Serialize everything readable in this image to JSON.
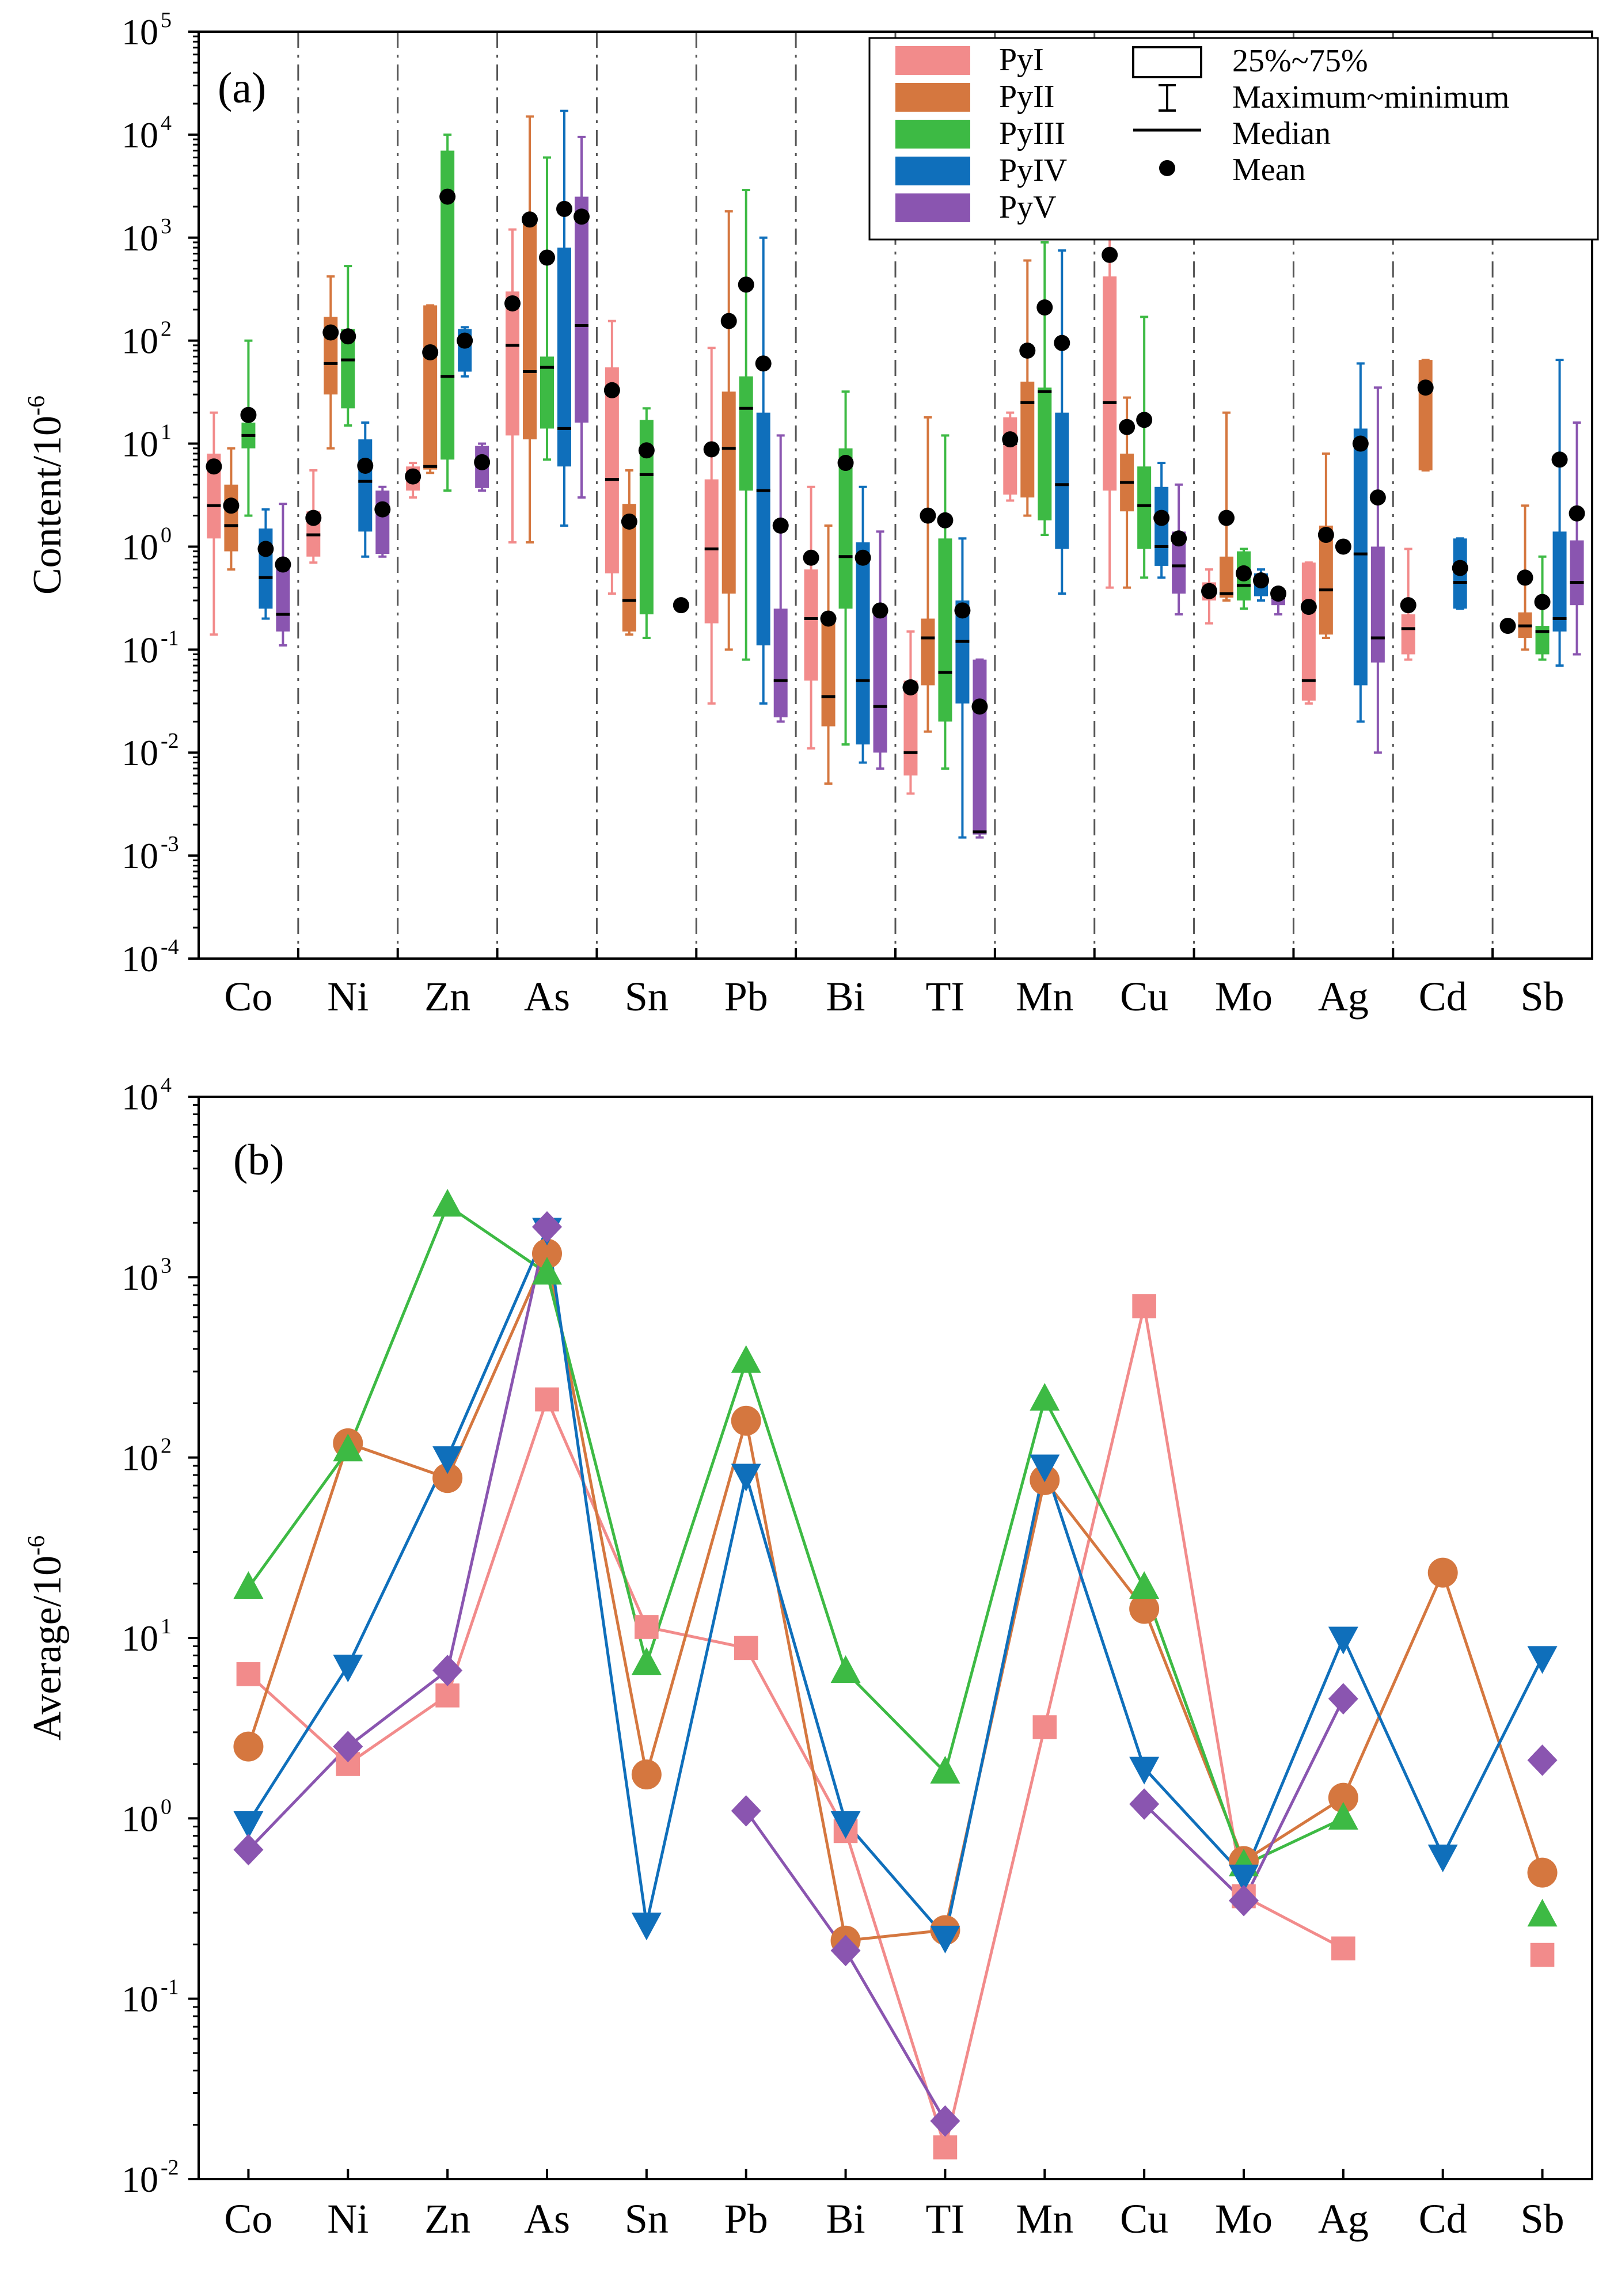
{
  "figure": {
    "elements": [
      "Co",
      "Ni",
      "Zn",
      "As",
      "Sn",
      "Pb",
      "Bi",
      "TI",
      "Mn",
      "Cu",
      "Mo",
      "Ag",
      "Cd",
      "Sb"
    ],
    "colors": {
      "PyI": "#f28b8b",
      "PyII": "#d5773f",
      "PyIII": "#3dba44",
      "PyIV": "#0f6fbb",
      "PyV": "#8a55b0"
    }
  },
  "chart_data": [
    {
      "type": "box",
      "panel": "(a)",
      "ylabel": "Content/10",
      "ylabel_exp": "-6",
      "yscale": "log",
      "ylim_exponents": [
        -4,
        5
      ],
      "ytick_exponents": [
        -4,
        -3,
        -2,
        -1,
        0,
        1,
        2,
        3,
        4,
        5
      ],
      "series_names": [
        "PyI",
        "PyII",
        "PyIII",
        "PyIV",
        "PyV"
      ],
      "legend": {
        "series": [
          "PyI",
          "PyII",
          "PyIII",
          "PyIV",
          "PyV"
        ],
        "symbols": [
          "25%~75%",
          "Maximum~minimum",
          "Median",
          "Mean"
        ]
      },
      "data": {
        "Co": [
          {
            "min": 0.14,
            "q1": 1.2,
            "med": 2.5,
            "q3": 8,
            "max": 20,
            "mean": 6
          },
          {
            "min": 0.6,
            "q1": 0.9,
            "med": 1.6,
            "q3": 4,
            "max": 9,
            "mean": 2.5
          },
          {
            "min": 2,
            "q1": 9,
            "med": 12,
            "q3": 16,
            "max": 100,
            "mean": 19
          },
          {
            "min": 0.2,
            "q1": 0.25,
            "med": 0.5,
            "q3": 1.5,
            "max": 2.3,
            "mean": 0.95
          },
          {
            "min": 0.11,
            "q1": 0.15,
            "med": 0.22,
            "q3": 0.6,
            "max": 2.6,
            "mean": 0.67
          }
        ],
        "Ni": [
          {
            "min": 0.7,
            "q1": 0.8,
            "med": 1.3,
            "q3": 2.2,
            "max": 5.5,
            "mean": 1.9
          },
          {
            "min": 9,
            "q1": 30,
            "med": 60,
            "q3": 170,
            "max": 420,
            "mean": 120
          },
          {
            "min": 15,
            "q1": 22,
            "med": 65,
            "q3": 130,
            "max": 530,
            "mean": 110
          },
          {
            "min": 0.8,
            "q1": 1.4,
            "med": 4.3,
            "q3": 11,
            "max": 16,
            "mean": 6.1
          },
          {
            "min": 0.8,
            "q1": 0.85,
            "med": 2.3,
            "q3": 3.5,
            "max": 3.8,
            "mean": 2.3
          }
        ],
        "Zn": [
          {
            "min": 3,
            "q1": 3.5,
            "med": 4.8,
            "q3": 6,
            "max": 6.5,
            "mean": 4.8
          },
          {
            "min": 5.2,
            "q1": 5.6,
            "med": 6,
            "q3": 220,
            "max": 220,
            "mean": 77
          },
          {
            "min": 3.5,
            "q1": 7,
            "med": 45,
            "q3": 7000,
            "max": 10000,
            "mean": 2500
          },
          {
            "min": 45,
            "q1": 50,
            "med": 100,
            "q3": 130,
            "max": 135,
            "mean": 100
          },
          {
            "min": 3.5,
            "q1": 3.7,
            "med": 6.5,
            "q3": 9.5,
            "max": 10,
            "mean": 6.6
          }
        ],
        "As": [
          {
            "min": 1.1,
            "q1": 12,
            "med": 90,
            "q3": 300,
            "max": 1200,
            "mean": 230
          },
          {
            "min": 1.1,
            "q1": 11,
            "med": 50,
            "q3": 1500,
            "max": 15000,
            "mean": 1500
          },
          {
            "min": 7,
            "q1": 14,
            "med": 55,
            "q3": 70,
            "max": 6000,
            "mean": 640
          },
          {
            "min": 1.6,
            "q1": 6,
            "med": 14,
            "q3": 800,
            "max": 17000,
            "mean": 1900
          },
          {
            "min": 3,
            "q1": 16,
            "med": 140,
            "q3": 2500,
            "max": 9500,
            "mean": 1600
          }
        ],
        "Sn": [
          {
            "min": 0.35,
            "q1": 0.55,
            "med": 4.5,
            "q3": 55,
            "max": 155,
            "mean": 33
          },
          {
            "min": 0.14,
            "q1": 0.15,
            "med": 0.3,
            "q3": 2.6,
            "max": 5.5,
            "mean": 1.75
          },
          {
            "min": 0.13,
            "q1": 0.22,
            "med": 5,
            "q3": 17,
            "max": 22,
            "mean": 8.6
          },
          null,
          {
            "min": 0.27,
            "q1": 0.27,
            "med": 0.27,
            "q3": 0.27,
            "max": 0.27,
            "mean": 0.27,
            "only_mean": true
          }
        ],
        "Pb": [
          {
            "min": 0.03,
            "q1": 0.18,
            "med": 0.95,
            "q3": 4.5,
            "max": 85,
            "mean": 8.8
          },
          {
            "min": 0.1,
            "q1": 0.35,
            "med": 9,
            "q3": 32,
            "max": 1800,
            "mean": 155
          },
          {
            "min": 0.08,
            "q1": 3.5,
            "med": 22,
            "q3": 45,
            "max": 2900,
            "mean": 350
          },
          {
            "min": 0.03,
            "q1": 0.11,
            "med": 3.5,
            "q3": 20,
            "max": 1000,
            "mean": 60
          },
          {
            "min": 0.02,
            "q1": 0.022,
            "med": 0.05,
            "q3": 0.25,
            "max": 12,
            "mean": 1.6
          }
        ],
        "Bi": [
          {
            "min": 0.011,
            "q1": 0.05,
            "med": 0.2,
            "q3": 0.6,
            "max": 3.8,
            "mean": 0.78
          },
          {
            "min": 0.005,
            "q1": 0.018,
            "med": 0.035,
            "q3": 0.2,
            "max": 1.6,
            "mean": 0.2
          },
          {
            "min": 0.012,
            "q1": 0.25,
            "med": 0.8,
            "q3": 9,
            "max": 32,
            "mean": 6.5
          },
          {
            "min": 0.008,
            "q1": 0.012,
            "med": 0.05,
            "q3": 1.1,
            "max": 3.8,
            "mean": 0.78
          },
          {
            "min": 0.007,
            "q1": 0.01,
            "med": 0.028,
            "q3": 0.25,
            "max": 1.4,
            "mean": 0.24
          }
        ],
        "TI": [
          {
            "min": 0.004,
            "q1": 0.006,
            "med": 0.01,
            "q3": 0.05,
            "max": 0.15,
            "mean": 0.043
          },
          {
            "min": 0.016,
            "q1": 0.045,
            "med": 0.13,
            "q3": 0.2,
            "max": 18,
            "mean": 2
          },
          {
            "min": 0.007,
            "q1": 0.02,
            "med": 0.06,
            "q3": 1.2,
            "max": 12,
            "mean": 1.8
          },
          {
            "min": 0.0015,
            "q1": 0.03,
            "med": 0.12,
            "q3": 0.3,
            "max": 1.2,
            "mean": 0.24
          },
          {
            "min": 0.0015,
            "q1": 0.0016,
            "med": 0.0017,
            "q3": 0.08,
            "max": 0.08,
            "mean": 0.028
          }
        ],
        "Mn": [
          {
            "min": 2.8,
            "q1": 3.2,
            "med": 10,
            "q3": 18,
            "max": 20,
            "mean": 11
          },
          {
            "min": 2,
            "q1": 3,
            "med": 25,
            "q3": 40,
            "max": 600,
            "mean": 80
          },
          {
            "min": 1.3,
            "q1": 1.8,
            "med": 32,
            "q3": 35,
            "max": 900,
            "mean": 210
          },
          {
            "min": 0.35,
            "q1": 0.95,
            "med": 4,
            "q3": 20,
            "max": 750,
            "mean": 95
          },
          null
        ],
        "Cu": [
          {
            "min": 0.4,
            "q1": 3.5,
            "med": 25,
            "q3": 420,
            "max": 6500,
            "mean": 680
          },
          {
            "min": 0.4,
            "q1": 2.2,
            "med": 4.2,
            "q3": 8,
            "max": 28,
            "mean": 14.5
          },
          {
            "min": 0.5,
            "q1": 0.95,
            "med": 2.5,
            "q3": 6,
            "max": 170,
            "mean": 17
          },
          {
            "min": 0.5,
            "q1": 0.65,
            "med": 1,
            "q3": 3.8,
            "max": 6.5,
            "mean": 1.9
          },
          {
            "min": 0.22,
            "q1": 0.35,
            "med": 0.65,
            "q3": 1.4,
            "max": 4,
            "mean": 1.2
          }
        ],
        "Mo": [
          {
            "min": 0.18,
            "q1": 0.3,
            "med": 0.35,
            "q3": 0.45,
            "max": 0.6,
            "mean": 0.37
          },
          {
            "min": 0.3,
            "q1": 0.32,
            "med": 0.35,
            "q3": 0.8,
            "max": 20,
            "mean": 1.9
          },
          {
            "min": 0.25,
            "q1": 0.3,
            "med": 0.42,
            "q3": 0.9,
            "max": 0.95,
            "mean": 0.55
          },
          {
            "min": 0.3,
            "q1": 0.33,
            "med": 0.45,
            "q3": 0.55,
            "max": 0.6,
            "mean": 0.47
          },
          {
            "min": 0.22,
            "q1": 0.27,
            "med": 0.32,
            "q3": 0.38,
            "max": 0.4,
            "mean": 0.35
          }
        ],
        "Ag": [
          {
            "min": 0.03,
            "q1": 0.032,
            "med": 0.05,
            "q3": 0.7,
            "max": 0.7,
            "mean": 0.26
          },
          {
            "min": 0.13,
            "q1": 0.14,
            "med": 0.38,
            "q3": 1.6,
            "max": 8,
            "mean": 1.3
          },
          {
            "min": 1,
            "q1": 1,
            "med": 1,
            "q3": 1,
            "max": 1,
            "mean": 1,
            "only_mean": true
          },
          {
            "min": 0.02,
            "q1": 0.045,
            "med": 0.85,
            "q3": 14,
            "max": 60,
            "mean": 10
          },
          {
            "min": 0.01,
            "q1": 0.075,
            "med": 0.13,
            "q3": 1,
            "max": 35,
            "mean": 3
          }
        ],
        "Cd": [
          {
            "min": 0.08,
            "q1": 0.09,
            "med": 0.16,
            "q3": 0.22,
            "max": 0.95,
            "mean": 0.27
          },
          {
            "min": 5.5,
            "q1": 5.5,
            "med": 35,
            "q3": 65,
            "max": 65,
            "mean": 35
          },
          null,
          {
            "min": 0.25,
            "q1": 0.25,
            "med": 0.45,
            "q3": 1.2,
            "max": 1.2,
            "mean": 0.62
          },
          null
        ],
        "Sb": [
          {
            "min": 0.17,
            "q1": 0.17,
            "med": 0.17,
            "q3": 0.17,
            "max": 0.17,
            "mean": 0.17,
            "only_mean": true
          },
          {
            "min": 0.1,
            "q1": 0.13,
            "med": 0.17,
            "q3": 0.23,
            "max": 2.5,
            "mean": 0.5
          },
          {
            "min": 0.08,
            "q1": 0.09,
            "med": 0.15,
            "q3": 0.17,
            "max": 0.8,
            "mean": 0.29
          },
          {
            "min": 0.07,
            "q1": 0.15,
            "med": 0.2,
            "q3": 1.4,
            "max": 65,
            "mean": 7
          },
          {
            "min": 0.09,
            "q1": 0.27,
            "med": 0.45,
            "q3": 1.15,
            "max": 16,
            "mean": 2.1
          }
        ]
      }
    },
    {
      "type": "line",
      "panel": "(b)",
      "ylabel": "Average/10",
      "ylabel_exp": "-6",
      "yscale": "log",
      "ylim_exponents": [
        -2,
        4
      ],
      "ytick_exponents": [
        -2,
        -1,
        0,
        1,
        2,
        3,
        4
      ],
      "categories": [
        "Co",
        "Ni",
        "Zn",
        "As",
        "Sn",
        "Pb",
        "Bi",
        "TI",
        "Mn",
        "Cu",
        "Mo",
        "Ag",
        "Cd",
        "Sb"
      ],
      "series": [
        {
          "name": "PyI",
          "marker": "square",
          "values": [
            6.3,
            2.0,
            4.8,
            210,
            11.5,
            8.8,
            0.85,
            0.015,
            3.2,
            690,
            0.37,
            0.19,
            null,
            0.175
          ]
        },
        {
          "name": "PyII",
          "marker": "circle",
          "values": [
            2.5,
            120,
            77,
            1350,
            1.75,
            160,
            0.21,
            0.24,
            75,
            14.5,
            0.58,
            1.3,
            23,
            0.5
          ]
        },
        {
          "name": "PyIII",
          "marker": "triangle-up",
          "values": [
            19,
            110,
            2500,
            1050,
            7.2,
            340,
            6.5,
            1.8,
            210,
            19,
            0.55,
            1.0,
            null,
            0.29
          ]
        },
        {
          "name": "PyIV",
          "marker": "triangle-down",
          "values": [
            0.95,
            7,
            100,
            1850,
            0.26,
            80,
            0.95,
            0.22,
            90,
            1.9,
            0.48,
            10,
            0.62,
            7.8
          ]
        },
        {
          "name": "PyV",
          "marker": "diamond",
          "values": [
            0.67,
            2.5,
            6.6,
            1900,
            null,
            1.1,
            0.185,
            0.021,
            null,
            1.2,
            0.35,
            4.6,
            null,
            2.1
          ]
        }
      ]
    }
  ]
}
